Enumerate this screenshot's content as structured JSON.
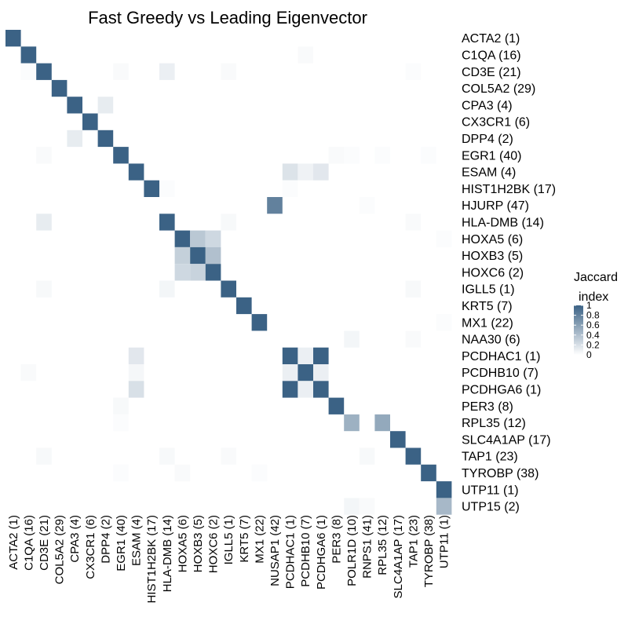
{
  "chart_data": {
    "type": "heatmap",
    "title": "Fast Greedy vs Leading Eigenvector",
    "colorscale": {
      "low": "#ffffff",
      "high": "#3b6285",
      "min": 0,
      "max": 1
    },
    "legend": {
      "title_line1": "Jaccard",
      "title_line2": "index",
      "position": "right",
      "ticks": [
        1,
        0.8,
        0.6,
        0.4,
        0.2,
        0
      ]
    },
    "y_labels": [
      "ACTA2 (1)",
      "C1QA (16)",
      "CD3E (21)",
      "COL5A2 (29)",
      "CPA3 (4)",
      "CX3CR1 (6)",
      "DPP4 (2)",
      "EGR1 (40)",
      "ESAM (4)",
      "HIST1H2BK (17)",
      "HJURP (47)",
      "HLA-DMB (14)",
      "HOXA5 (6)",
      "HOXB3 (5)",
      "HOXC6 (2)",
      "IGLL5 (1)",
      "KRT5 (7)",
      "MX1 (22)",
      "NAA30 (6)",
      "PCDHAC1 (1)",
      "PCDHB10 (7)",
      "PCDHGA6 (1)",
      "PER3 (8)",
      "RPL35 (12)",
      "SLC4A1AP (17)",
      "TAP1 (23)",
      "TYROBP (38)",
      "UTP11 (1)",
      "UTP15 (2)"
    ],
    "x_labels": [
      "ACTA2 (1)",
      "C1QA (16)",
      "CD3E (21)",
      "COL5A2 (29)",
      "CPA3 (4)",
      "CX3CR1 (6)",
      "DPP4 (2)",
      "EGR1 (40)",
      "ESAM (4)",
      "HIST1H2BK (17)",
      "HLA-DMB (14)",
      "HOXA5 (6)",
      "HOXB3 (5)",
      "HOXC6 (2)",
      "IGLL5 (1)",
      "KRT5 (7)",
      "MX1 (22)",
      "NUSAP1 (42)",
      "PCDHAC1 (1)",
      "PCDHB10 (7)",
      "PCDHGA6 (1)",
      "PER3 (8)",
      "POLR1D (10)",
      "RNPS1 (41)",
      "RPL35 (12)",
      "SLC4A1AP (17)",
      "TAP1 (23)",
      "TYROBP (38)",
      "UTP11 (1)"
    ],
    "cells": [
      [
        0,
        0,
        1
      ],
      [
        1,
        1,
        1
      ],
      [
        1,
        19,
        0.03
      ],
      [
        2,
        1,
        0.02
      ],
      [
        2,
        2,
        1
      ],
      [
        2,
        7,
        0.03
      ],
      [
        2,
        10,
        0.1
      ],
      [
        2,
        14,
        0.03
      ],
      [
        2,
        26,
        0.02
      ],
      [
        3,
        3,
        1
      ],
      [
        4,
        4,
        1
      ],
      [
        4,
        6,
        0.12
      ],
      [
        5,
        5,
        1
      ],
      [
        6,
        4,
        0.12
      ],
      [
        6,
        6,
        1
      ],
      [
        7,
        2,
        0.03
      ],
      [
        7,
        7,
        1
      ],
      [
        7,
        21,
        0.03
      ],
      [
        7,
        22,
        0.02
      ],
      [
        7,
        24,
        0.02
      ],
      [
        7,
        27,
        0.02
      ],
      [
        8,
        8,
        1
      ],
      [
        8,
        18,
        0.18
      ],
      [
        8,
        19,
        0.08
      ],
      [
        8,
        20,
        0.15
      ],
      [
        9,
        9,
        1
      ],
      [
        9,
        10,
        0.02
      ],
      [
        9,
        18,
        0.02
      ],
      [
        10,
        17,
        0.8
      ],
      [
        10,
        23,
        0.02
      ],
      [
        11,
        2,
        0.12
      ],
      [
        11,
        10,
        1
      ],
      [
        11,
        14,
        0.04
      ],
      [
        11,
        26,
        0.03
      ],
      [
        12,
        11,
        1
      ],
      [
        12,
        12,
        0.35
      ],
      [
        12,
        13,
        0.25
      ],
      [
        12,
        28,
        0.02
      ],
      [
        13,
        11,
        0.3
      ],
      [
        13,
        12,
        1
      ],
      [
        13,
        13,
        0.4
      ],
      [
        14,
        11,
        0.25
      ],
      [
        14,
        12,
        0.28
      ],
      [
        14,
        13,
        1
      ],
      [
        15,
        2,
        0.04
      ],
      [
        15,
        10,
        0.06
      ],
      [
        15,
        14,
        1
      ],
      [
        15,
        26,
        0.04
      ],
      [
        16,
        15,
        1
      ],
      [
        17,
        16,
        1
      ],
      [
        17,
        28,
        0.02
      ],
      [
        18,
        22,
        0.06
      ],
      [
        18,
        26,
        0.03
      ],
      [
        19,
        8,
        0.15
      ],
      [
        19,
        18,
        1
      ],
      [
        19,
        19,
        0.1
      ],
      [
        19,
        20,
        1
      ],
      [
        20,
        1,
        0.03
      ],
      [
        20,
        8,
        0.05
      ],
      [
        20,
        18,
        0.1
      ],
      [
        20,
        19,
        1
      ],
      [
        20,
        20,
        0.1
      ],
      [
        21,
        8,
        0.2
      ],
      [
        21,
        18,
        1
      ],
      [
        21,
        19,
        0.1
      ],
      [
        21,
        20,
        1
      ],
      [
        22,
        7,
        0.04
      ],
      [
        22,
        21,
        1
      ],
      [
        23,
        7,
        0.02
      ],
      [
        23,
        22,
        0.5
      ],
      [
        23,
        24,
        0.55
      ],
      [
        24,
        25,
        1
      ],
      [
        25,
        2,
        0.04
      ],
      [
        25,
        10,
        0.04
      ],
      [
        25,
        14,
        0.03
      ],
      [
        25,
        23,
        0.04
      ],
      [
        25,
        26,
        1
      ],
      [
        26,
        7,
        0.02
      ],
      [
        26,
        11,
        0.03
      ],
      [
        26,
        16,
        0.02
      ],
      [
        26,
        27,
        1
      ],
      [
        27,
        28,
        1
      ],
      [
        28,
        22,
        0.06
      ],
      [
        28,
        23,
        0.03
      ],
      [
        28,
        28,
        0.45
      ]
    ]
  }
}
